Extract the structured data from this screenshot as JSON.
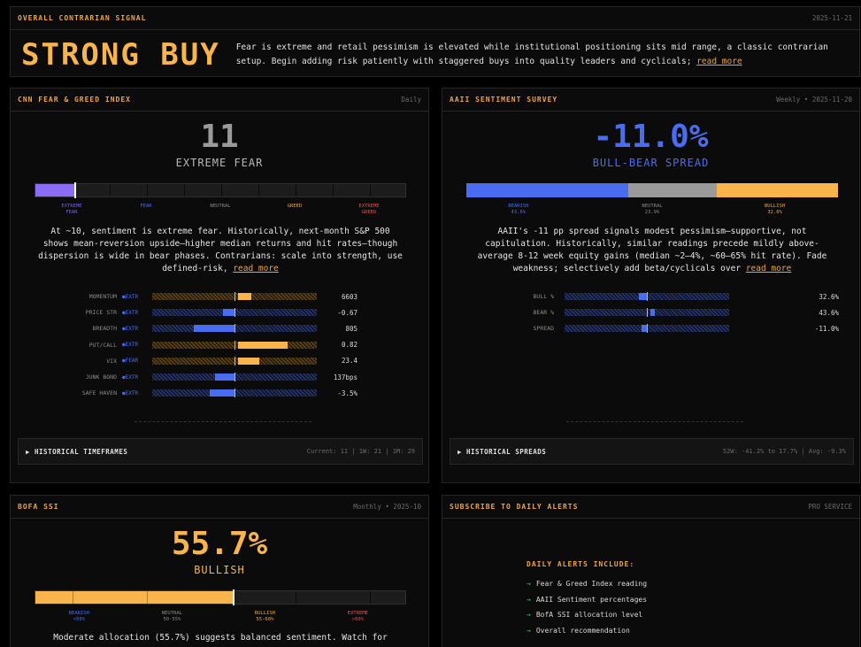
{
  "overall": {
    "title": "OVERALL CONTRARIAN SIGNAL",
    "date": "2025-11-21",
    "signal": "STRONG BUY",
    "text": "Fear is extreme and retail pessimism is elevated while institutional positioning sits mid range, a classic contrarian setup. Begin adding risk patiently with staggered buys into quality leaders and cyclicals;",
    "read_more": "read more"
  },
  "fear_greed": {
    "title": "CNN FEAR & GREED INDEX",
    "meta": "Daily",
    "value": "11",
    "label": "EXTREME FEAR",
    "level": 0.105,
    "scale": [
      "EXTREME FEAR",
      "FEAR",
      "NEUTRAL",
      "GREED",
      "EXTREME GREED"
    ],
    "scale_colors": [
      "#7b5cf0",
      "#4a6cf0",
      "#8a8a8a",
      "#f0a340",
      "#e05050"
    ],
    "desc": "At ~10, sentiment is extreme fear. Historically, next-month S&P 500 shows mean-reversion upside—higher median returns and hit rates—though dispersion is wide in bear phases. Contrarians: scale into strength, use defined-risk,",
    "read_more": "read more",
    "metrics": [
      {
        "name": "MOMENTUM",
        "tag": "●EXTR",
        "value": "6603",
        "color": "orange",
        "from": 0.52,
        "to": 0.6
      },
      {
        "name": "PRICE STR",
        "tag": "●EXTR",
        "value": "-0.67",
        "color": "blue",
        "from": 0.43,
        "to": 0.5
      },
      {
        "name": "BREADTH",
        "tag": "●EXTR",
        "value": "805",
        "color": "blue",
        "from": 0.25,
        "to": 0.5
      },
      {
        "name": "PUT/CALL",
        "tag": "●EXTR",
        "value": "0.82",
        "color": "orange",
        "from": 0.52,
        "to": 0.82
      },
      {
        "name": "VIX",
        "tag": "●FEAR",
        "value": "23.4",
        "color": "orange",
        "from": 0.52,
        "to": 0.65
      },
      {
        "name": "JUNK BOND",
        "tag": "●EXTR",
        "value": "137bps",
        "color": "blue",
        "from": 0.38,
        "to": 0.5
      },
      {
        "name": "SAFE HAVEN",
        "tag": "●EXTR",
        "value": "-3.5%",
        "color": "blue",
        "from": 0.35,
        "to": 0.5
      }
    ],
    "expander": "▶ HISTORICAL TIMEFRAMES",
    "expander_meta": "Current: 11 | 1W: 21 | 1M: 29"
  },
  "aaii": {
    "title": "AAII SENTIMENT SURVEY",
    "meta": "Weekly • 2025-11-20",
    "value": "-11.0%",
    "label": "BULL-BEAR SPREAD",
    "bearish_label": "BEARISH",
    "bearish": "43.6%",
    "neutral_label": "NEUTRAL",
    "neutral": "23.9%",
    "bullish_label": "BULLISH",
    "bullish": "32.6%",
    "desc": "AAII's -11 pp spread signals modest pessimism—supportive, not capitulation. Historically, similar readings precede mildly above-average 8-12 week equity gains (median ~2–4%, ~60–65% hit rate). Fade weakness; selectively add beta/cyclicals over",
    "read_more": "read more",
    "metrics": [
      {
        "name": "BULL %",
        "value": "32.6%",
        "from": 0.45,
        "to": 0.5
      },
      {
        "name": "BEAR %",
        "value": "43.6%",
        "from": 0.52,
        "to": 0.55
      },
      {
        "name": "SPREAD",
        "value": "-11.0%",
        "from": 0.47,
        "to": 0.5
      }
    ],
    "expander": "▶ HISTORICAL SPREADS",
    "expander_meta": "52W: -41.2% to 17.7% | Avg: -9.3%"
  },
  "bofa": {
    "title": "BOFA SSI",
    "meta": "Monthly • 2025-10",
    "value": "55.7%",
    "label": "BULLISH",
    "level": 0.53,
    "scale": [
      {
        "t": "BEARISH",
        "s": "<50%",
        "c": "#4a6cf0"
      },
      {
        "t": "NEUTRAL",
        "s": "50-55%",
        "c": "#8a8a8a"
      },
      {
        "t": "BULLISH",
        "s": "55-60%",
        "c": "#f0a340"
      },
      {
        "t": "EXTREME",
        "s": ">60%",
        "c": "#e05050"
      }
    ],
    "desc": "Moderate allocation (55.7%) suggests balanced sentiment. Watch for"
  },
  "alerts": {
    "title": "SUBSCRIBE TO DAILY ALERTS",
    "meta": "PRO SERVICE",
    "list_title": "DAILY ALERTS INCLUDE:",
    "items": [
      "Fear & Greed Index reading",
      "AAII Sentiment percentages",
      "BofA SSI allocation level",
      "Overall recommendation"
    ]
  },
  "colors": {
    "accent": "#f9b54c",
    "blue": "#4a6cf0",
    "purple": "#8a6cf5",
    "gray": "#9a9a9a"
  }
}
